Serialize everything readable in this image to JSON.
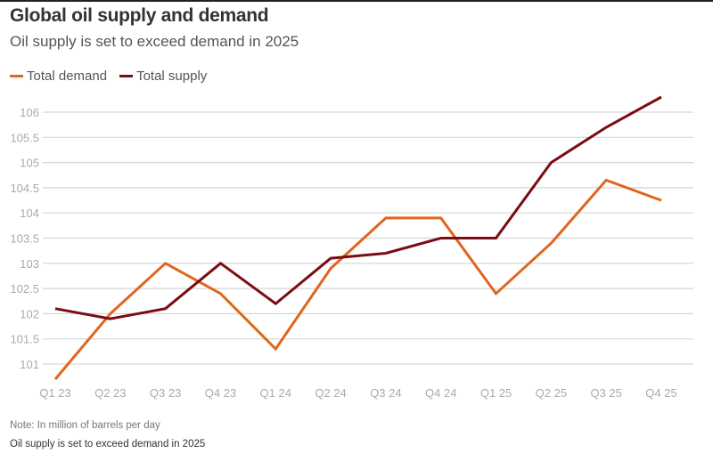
{
  "header": {
    "title": "Global oil supply and demand",
    "subtitle": "Oil supply is set to exceed demand in 2025"
  },
  "footer": {
    "note": "Note: In million of barrels per day",
    "caption": "Oil supply is set to exceed demand in 2025"
  },
  "chart_data": {
    "type": "line",
    "title": "Global oil supply and demand",
    "subtitle": "Oil supply is set to exceed demand in 2025",
    "xlabel": "",
    "ylabel": "",
    "categories": [
      "Q1 23",
      "Q2 23",
      "Q3 23",
      "Q4 23",
      "Q1 24",
      "Q2 24",
      "Q3 24",
      "Q4 24",
      "Q1 25",
      "Q2 25",
      "Q3 25",
      "Q4 25"
    ],
    "yticks": [
      101,
      101.5,
      102,
      102.5,
      103,
      103.5,
      104,
      104.5,
      105,
      105.5,
      106
    ],
    "ylim": [
      100.7,
      106.3
    ],
    "grid": true,
    "legend_position": "top-left",
    "series": [
      {
        "name": "Total demand",
        "color": "#e0661f",
        "values": [
          100.7,
          102.0,
          103.0,
          102.4,
          101.3,
          102.9,
          103.9,
          103.9,
          102.4,
          103.4,
          104.65,
          104.25
        ]
      },
      {
        "name": "Total supply",
        "color": "#7a0c12",
        "values": [
          102.1,
          101.9,
          102.1,
          103.0,
          102.2,
          103.1,
          103.2,
          103.5,
          103.5,
          105.0,
          105.7,
          106.3
        ]
      }
    ]
  }
}
